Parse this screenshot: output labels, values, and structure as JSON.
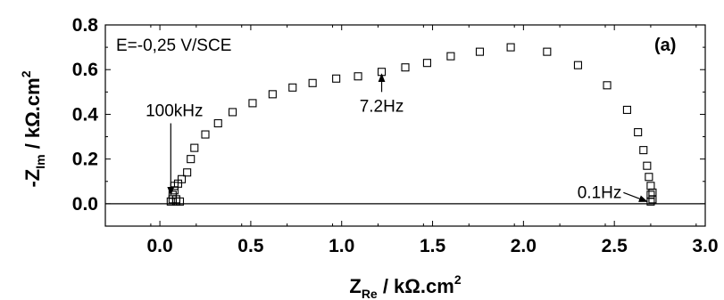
{
  "chart_data": {
    "type": "scatter",
    "title": "",
    "condition_label": "E=-0,25 V/SCE",
    "panel_label": "(a)",
    "xlabel": {
      "prefix": "Z",
      "sub": "Re",
      "mid": " / kΩ.cm",
      "sup": "2"
    },
    "ylabel": {
      "prefix": "-Z",
      "sub": "Im",
      "mid": " / kΩ.cm",
      "sup": "2"
    },
    "xlim": [
      -0.3,
      3.0
    ],
    "ylim": [
      -0.1,
      0.8
    ],
    "xticks": [
      0.0,
      0.5,
      1.0,
      1.5,
      2.0,
      2.5,
      3.0
    ],
    "xtick_labels": [
      "0.0",
      "0.5",
      "1.0",
      "1.5",
      "2.0",
      "2.5",
      "3.0"
    ],
    "yticks": [
      0.0,
      0.2,
      0.4,
      0.6,
      0.8
    ],
    "ytick_labels": [
      "0.0",
      "0.2",
      "0.4",
      "0.6",
      "0.8"
    ],
    "zero_line": true,
    "grid": false,
    "series": [
      {
        "marker": "open-square",
        "x": [
          0.06,
          0.07,
          0.07,
          0.08,
          0.08,
          0.09,
          0.09,
          0.1,
          0.11,
          0.12,
          0.15,
          0.17,
          0.19,
          0.25,
          0.32,
          0.4,
          0.51,
          0.62,
          0.73,
          0.84,
          0.97,
          1.09,
          1.22,
          1.35,
          1.47,
          1.6,
          1.76,
          1.93,
          2.13,
          2.3,
          2.46,
          2.57,
          2.63,
          2.66,
          2.68,
          2.69,
          2.7,
          2.7,
          2.71,
          2.71,
          2.7
        ],
        "y": [
          0.01,
          0.04,
          0.02,
          0.06,
          0.08,
          0.01,
          0.02,
          0.09,
          0.01,
          0.11,
          0.14,
          0.2,
          0.25,
          0.31,
          0.36,
          0.41,
          0.45,
          0.49,
          0.52,
          0.54,
          0.56,
          0.57,
          0.59,
          0.61,
          0.63,
          0.66,
          0.68,
          0.7,
          0.68,
          0.62,
          0.53,
          0.42,
          0.32,
          0.24,
          0.17,
          0.12,
          0.08,
          0.04,
          0.02,
          0.05,
          0.01
        ]
      }
    ],
    "annotations": [
      {
        "text": "100kHz",
        "arrow_from": [
          0.06,
          0.36
        ],
        "arrow_to": [
          0.06,
          0.04
        ]
      },
      {
        "text": "7.2Hz",
        "arrow_from": [
          1.22,
          0.5
        ],
        "arrow_to": [
          1.22,
          0.58
        ]
      },
      {
        "text": "0.1Hz",
        "arrow_from": [
          2.55,
          0.05
        ],
        "arrow_to": [
          2.68,
          0.01
        ]
      }
    ]
  }
}
